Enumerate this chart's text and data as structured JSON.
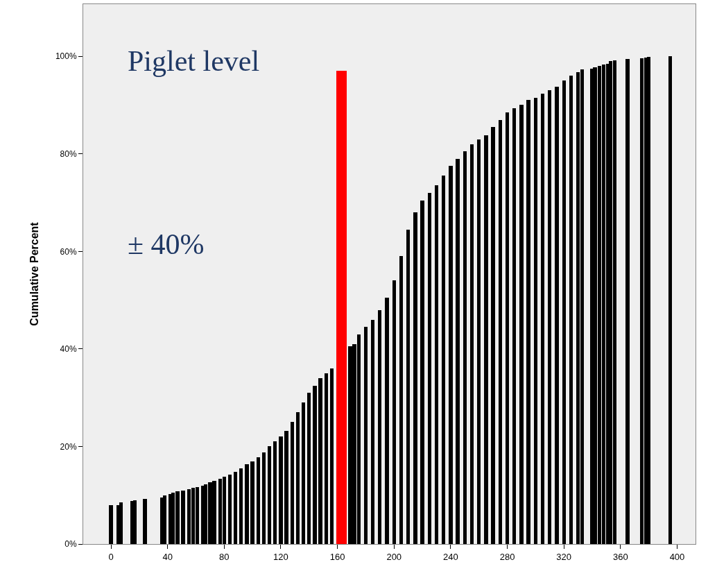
{
  "chart_data": {
    "type": "bar",
    "ylabel": "Cumulative Percent",
    "annotations": [
      "Piglet level",
      "± 40%"
    ],
    "xlim": [
      -19.6,
      413
    ],
    "xticks": [
      0,
      40,
      80,
      120,
      160,
      200,
      240,
      280,
      320,
      360,
      400
    ],
    "ylim": [
      0,
      110.7
    ],
    "yticks": [
      {
        "value": 0,
        "label": "0%"
      },
      {
        "value": 20,
        "label": "20%"
      },
      {
        "value": 40,
        "label": "40%"
      },
      {
        "value": 60,
        "label": "60%"
      },
      {
        "value": 80,
        "label": "80%"
      },
      {
        "value": 100,
        "label": "100%"
      }
    ],
    "grid": false,
    "series": [
      {
        "color": "#000000",
        "x": [
          0,
          5,
          7,
          15,
          17,
          24,
          36,
          38,
          42,
          44,
          47,
          51,
          55,
          58,
          61,
          65,
          67,
          70,
          73,
          77,
          80,
          84,
          88,
          92,
          96,
          100,
          104,
          108,
          112,
          116,
          120,
          124,
          128,
          132,
          136,
          140,
          144,
          148,
          152,
          156,
          160,
          169,
          172,
          175,
          180,
          185,
          190,
          195,
          200,
          205,
          210,
          215,
          220,
          225,
          230,
          235,
          240,
          245,
          250,
          255,
          260,
          265,
          270,
          275,
          280,
          285,
          290,
          295,
          300,
          305,
          310,
          315,
          320,
          325,
          330,
          333,
          340,
          342,
          345,
          348,
          351,
          353,
          356,
          365,
          375,
          378,
          380,
          395
        ],
        "values": [
          8,
          8,
          8.5,
          8.8,
          9,
          9.2,
          9.6,
          10,
          10.2,
          10.5,
          10.8,
          11,
          11.2,
          11.5,
          11.7,
          12,
          12.2,
          12.6,
          13,
          13.4,
          13.8,
          14.2,
          14.8,
          15.5,
          16.3,
          17,
          17.8,
          18.8,
          20,
          21,
          22,
          23.2,
          25,
          27,
          29,
          31,
          32.5,
          34,
          35,
          36,
          null,
          40.5,
          41,
          43,
          44.5,
          46,
          48,
          50.5,
          54,
          59,
          64.5,
          68,
          70.5,
          72,
          73.5,
          75.5,
          77.5,
          79,
          80.5,
          82,
          83,
          83.8,
          85.5,
          87,
          88.5,
          89.3,
          90,
          91,
          91.5,
          92.3,
          93,
          93.8,
          95,
          96,
          96.8,
          97.3,
          97.5,
          97.8,
          98,
          98.3,
          98.5,
          99,
          99.2,
          99.4,
          99.6,
          99.8,
          99.9,
          100
        ]
      },
      {
        "color": "#ff0000",
        "x": [
          163
        ],
        "values": [
          97
        ]
      }
    ]
  }
}
